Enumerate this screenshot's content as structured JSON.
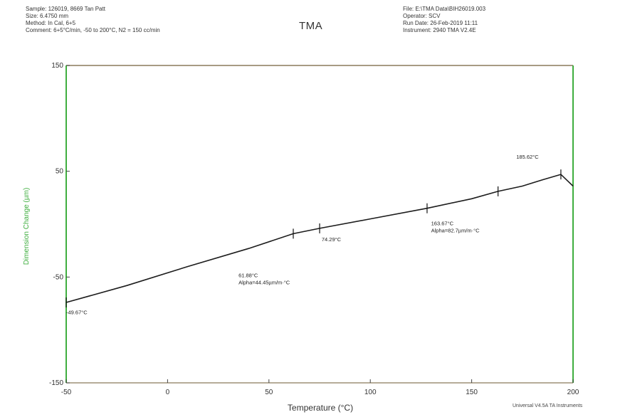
{
  "header": {
    "left": [
      "Sample: 126019, 8669 Tan Patt",
      "Size: 6.4750 mm",
      "Method: In Cal, 6+5",
      "Comment: 6+5°C/min, -50 to 200°C, N2 = 150 cc/min"
    ],
    "right": [
      "File: E:\\TMA Data\\BIH26019.003",
      "Operator: SCV",
      "Run Date: 26-Feb-2019 11:11",
      "Instrument: 2940 TMA V2.4E"
    ]
  },
  "footer": "Universal V4.5A TA Instruments",
  "colors": {
    "axis": "#3fae3f",
    "frame": "#8a7a5a",
    "curve": "#1c1c1c",
    "accent": "#b8d070"
  },
  "chart_data": {
    "type": "line",
    "title": "TMA",
    "xlabel": "Temperature (°C)",
    "ylabel": "Dimension Change (µm)",
    "xlim": [
      -50,
      200
    ],
    "ylim": [
      -150,
      150
    ],
    "x_ticks": [
      -50,
      0,
      50,
      100,
      150,
      200
    ],
    "x_tick_labels": [
      "-50",
      "0",
      "50",
      "100",
      "150",
      "200"
    ],
    "y_ticks": [
      -150,
      -50,
      50,
      150
    ],
    "y_tick_labels": [
      "-150",
      "-50",
      "50",
      "150"
    ],
    "grid": false,
    "series": [
      {
        "x": [
          -50,
          -20,
          10,
          40,
          62,
          75,
          100,
          128,
          150,
          163,
          175,
          185,
          194,
          200
        ],
        "y": [
          -74,
          -58,
          -40,
          -23,
          -9,
          -4,
          5,
          15,
          24,
          31,
          36,
          42,
          47,
          36
        ]
      }
    ],
    "markers": [
      {
        "x": -50,
        "y": -74
      },
      {
        "x": 62,
        "y": -9
      },
      {
        "x": 75,
        "y": -4
      },
      {
        "x": 128,
        "y": 15
      },
      {
        "x": 163,
        "y": 31
      },
      {
        "x": 194,
        "y": 47
      }
    ],
    "annotations": [
      {
        "lines": [
          "-49.67°C"
        ],
        "x": -50,
        "y": -85
      },
      {
        "lines": [
          "74.29°C"
        ],
        "x": 76,
        "y": -16
      },
      {
        "lines": [
          "61.88°C",
          "Alpha=44.45µm/m·°C"
        ],
        "x": 35,
        "y": -50
      },
      {
        "lines": [
          "163.67°C",
          "Alpha=82.7µm/m·°C"
        ],
        "x": 130,
        "y": -1
      },
      {
        "lines": [
          "185.62°C"
        ],
        "x": 172,
        "y": 62
      }
    ]
  }
}
